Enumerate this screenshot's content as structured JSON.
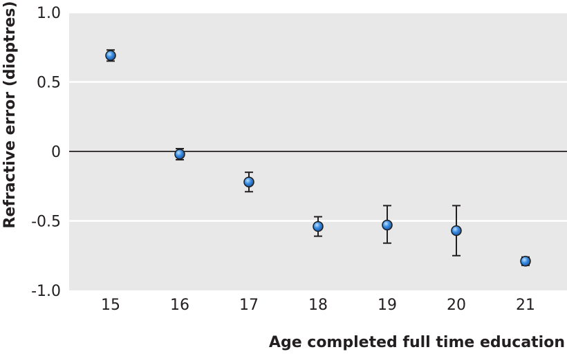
{
  "chart_data": {
    "type": "scatter",
    "title": "",
    "xlabel": "Age completed full time education",
    "ylabel": "Refractive error (dioptres)",
    "ylim": [
      -1.0,
      1.0
    ],
    "xlim": [
      14.4,
      21.6
    ],
    "x_ticks": [
      15,
      16,
      17,
      18,
      19,
      20,
      21
    ],
    "x_tick_labels": [
      "15",
      "16",
      "17",
      "18",
      "19",
      "20",
      "21"
    ],
    "y_ticks": [
      1.0,
      0.5,
      0,
      -0.5,
      -1.0
    ],
    "y_tick_labels": [
      "1.0",
      "0.5",
      "0",
      "-0.5",
      "-1.0"
    ],
    "grid": "horizontal",
    "reference_line_y": 0,
    "background_color": "#e8e8e8",
    "marker_color": "#3d8fe0",
    "marker_edge_color": "#1c1c1c",
    "errorbar_color": "#231f20",
    "points": [
      {
        "x": 15,
        "y": 0.69,
        "lower": 0.65,
        "upper": 0.73
      },
      {
        "x": 16,
        "y": -0.02,
        "lower": -0.06,
        "upper": 0.02
      },
      {
        "x": 17,
        "y": -0.22,
        "lower": -0.29,
        "upper": -0.15
      },
      {
        "x": 18,
        "y": -0.54,
        "lower": -0.61,
        "upper": -0.47
      },
      {
        "x": 19,
        "y": -0.53,
        "lower": -0.66,
        "upper": -0.39
      },
      {
        "x": 20,
        "y": -0.57,
        "lower": -0.75,
        "upper": -0.39
      },
      {
        "x": 21,
        "y": -0.79,
        "lower": -0.82,
        "upper": -0.76
      }
    ]
  }
}
